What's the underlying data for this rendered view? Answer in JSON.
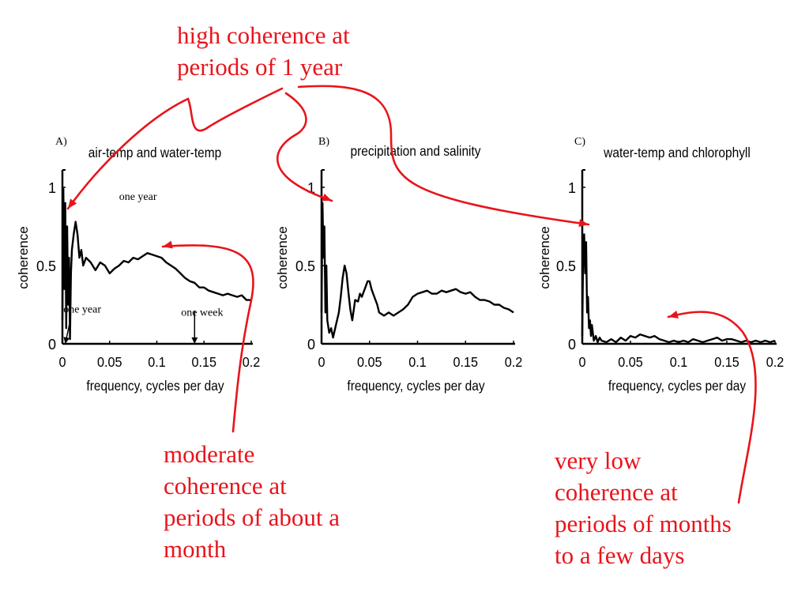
{
  "annotations": {
    "top": [
      "high coherence at",
      "periods of 1 year"
    ],
    "bottom_left": [
      "moderate",
      "coherence at",
      "periods of about a",
      "month"
    ],
    "bottom_right": [
      "very low",
      "coherence at",
      "periods of months",
      "to a few days"
    ]
  },
  "colors": {
    "annotation": "#e8141c",
    "series": "#000000"
  },
  "chart_data": [
    {
      "type": "line",
      "panel_label": "A)",
      "title": "air-temp and water-temp",
      "xlabel": "frequency, cycles per day",
      "ylabel": "coherence",
      "xlim": [
        0,
        0.2
      ],
      "ylim": [
        0,
        1
      ],
      "xticks": [
        "0",
        "0.05",
        "0.1",
        "0.15",
        "0.2"
      ],
      "yticks": [
        "0",
        "0.5",
        "1"
      ],
      "annotations": [
        {
          "text": "one year",
          "x": 0.08,
          "y": 0.92
        },
        {
          "text": "one year",
          "x": 0.021,
          "y": 0.2
        },
        {
          "text": "one week",
          "x": 0.148,
          "y": 0.18
        }
      ],
      "arrows": [
        {
          "from": [
            0.008,
            0.14
          ],
          "to": [
            0.003,
            0.0
          ]
        },
        {
          "from": [
            0.14,
            0.21
          ],
          "to": [
            0.14,
            0.0
          ]
        }
      ],
      "series": [
        {
          "x": [
            0,
            0.001,
            0.002,
            0.003,
            0.004,
            0.005,
            0.006,
            0.007,
            0.008,
            0.009,
            0.01,
            0.012,
            0.014,
            0.016,
            0.018,
            0.02,
            0.022,
            0.025,
            0.03,
            0.035,
            0.04,
            0.045,
            0.05,
            0.055,
            0.06,
            0.065,
            0.07,
            0.075,
            0.08,
            0.085,
            0.09,
            0.095,
            0.1,
            0.105,
            0.11,
            0.115,
            0.12,
            0.125,
            0.13,
            0.135,
            0.14,
            0.145,
            0.15,
            0.155,
            0.16,
            0.165,
            0.17,
            0.175,
            0.18,
            0.185,
            0.19,
            0.195,
            0.2
          ],
          "y": [
            0.15,
            0.99,
            0.35,
            0.9,
            0.1,
            0.75,
            0.25,
            0.55,
            0.03,
            0.45,
            0.6,
            0.7,
            0.78,
            0.7,
            0.55,
            0.6,
            0.5,
            0.55,
            0.52,
            0.47,
            0.52,
            0.5,
            0.45,
            0.48,
            0.5,
            0.53,
            0.52,
            0.55,
            0.54,
            0.56,
            0.58,
            0.57,
            0.56,
            0.55,
            0.52,
            0.5,
            0.48,
            0.45,
            0.42,
            0.4,
            0.39,
            0.36,
            0.36,
            0.34,
            0.33,
            0.32,
            0.31,
            0.32,
            0.31,
            0.3,
            0.31,
            0.28,
            0.28
          ]
        }
      ]
    },
    {
      "type": "line",
      "panel_label": "B)",
      "title": "precipitation and salinity",
      "xlabel": "frequency, cycles per day",
      "ylabel": "coherence",
      "xlim": [
        0,
        0.2
      ],
      "ylim": [
        0,
        1
      ],
      "xticks": [
        "0",
        "0.05",
        "0.1",
        "0.15",
        "0.2"
      ],
      "yticks": [
        "0",
        "0.5",
        "1"
      ],
      "series": [
        {
          "x": [
            0,
            0.001,
            0.002,
            0.003,
            0.004,
            0.005,
            0.006,
            0.008,
            0.01,
            0.012,
            0.015,
            0.018,
            0.02,
            0.022,
            0.024,
            0.026,
            0.028,
            0.03,
            0.032,
            0.035,
            0.038,
            0.04,
            0.042,
            0.045,
            0.048,
            0.05,
            0.052,
            0.055,
            0.058,
            0.06,
            0.065,
            0.07,
            0.075,
            0.08,
            0.085,
            0.09,
            0.095,
            0.1,
            0.105,
            0.11,
            0.115,
            0.12,
            0.125,
            0.13,
            0.135,
            0.14,
            0.145,
            0.15,
            0.155,
            0.16,
            0.165,
            0.17,
            0.175,
            0.18,
            0.185,
            0.19,
            0.195,
            0.2
          ],
          "y": [
            0.2,
            0.9,
            0.55,
            0.75,
            0.2,
            0.5,
            0.15,
            0.07,
            0.1,
            0.04,
            0.12,
            0.2,
            0.3,
            0.42,
            0.5,
            0.45,
            0.33,
            0.22,
            0.15,
            0.28,
            0.27,
            0.32,
            0.3,
            0.35,
            0.4,
            0.4,
            0.35,
            0.3,
            0.25,
            0.2,
            0.18,
            0.2,
            0.18,
            0.2,
            0.22,
            0.25,
            0.3,
            0.32,
            0.33,
            0.34,
            0.32,
            0.32,
            0.34,
            0.33,
            0.34,
            0.35,
            0.33,
            0.32,
            0.33,
            0.3,
            0.28,
            0.28,
            0.27,
            0.25,
            0.25,
            0.23,
            0.22,
            0.2
          ]
        }
      ]
    },
    {
      "type": "line",
      "panel_label": "C)",
      "title": "water-temp and chlorophyll",
      "xlabel": "frequency, cycles per day",
      "ylabel": "coherence",
      "xlim": [
        0,
        0.2
      ],
      "ylim": [
        0,
        1
      ],
      "xticks": [
        "0",
        "0.05",
        "0.1",
        "0.15",
        "0.2"
      ],
      "yticks": [
        "0",
        "0.5",
        "1"
      ],
      "series": [
        {
          "x": [
            0,
            0.001,
            0.002,
            0.003,
            0.004,
            0.005,
            0.006,
            0.007,
            0.008,
            0.009,
            0.01,
            0.012,
            0.014,
            0.016,
            0.018,
            0.02,
            0.025,
            0.03,
            0.035,
            0.04,
            0.045,
            0.05,
            0.055,
            0.06,
            0.065,
            0.07,
            0.075,
            0.08,
            0.085,
            0.09,
            0.095,
            0.1,
            0.105,
            0.11,
            0.115,
            0.12,
            0.125,
            0.13,
            0.135,
            0.14,
            0.145,
            0.15,
            0.155,
            0.16,
            0.165,
            0.17,
            0.175,
            0.18,
            0.185,
            0.19,
            0.195,
            0.2
          ],
          "y": [
            0.05,
            0.6,
            0.7,
            0.45,
            0.65,
            0.2,
            0.3,
            0.1,
            0.15,
            0.05,
            0.12,
            0.02,
            0.05,
            0.01,
            0.04,
            0.02,
            0.01,
            0.03,
            0.01,
            0.04,
            0.02,
            0.05,
            0.04,
            0.06,
            0.05,
            0.04,
            0.05,
            0.03,
            0.02,
            0.01,
            0.02,
            0.01,
            0.02,
            0.01,
            0.03,
            0.02,
            0.01,
            0.02,
            0.03,
            0.04,
            0.02,
            0.03,
            0.03,
            0.02,
            0.01,
            0.02,
            0.01,
            0.02,
            0.01,
            0.02,
            0.01,
            0.02
          ]
        }
      ]
    }
  ]
}
